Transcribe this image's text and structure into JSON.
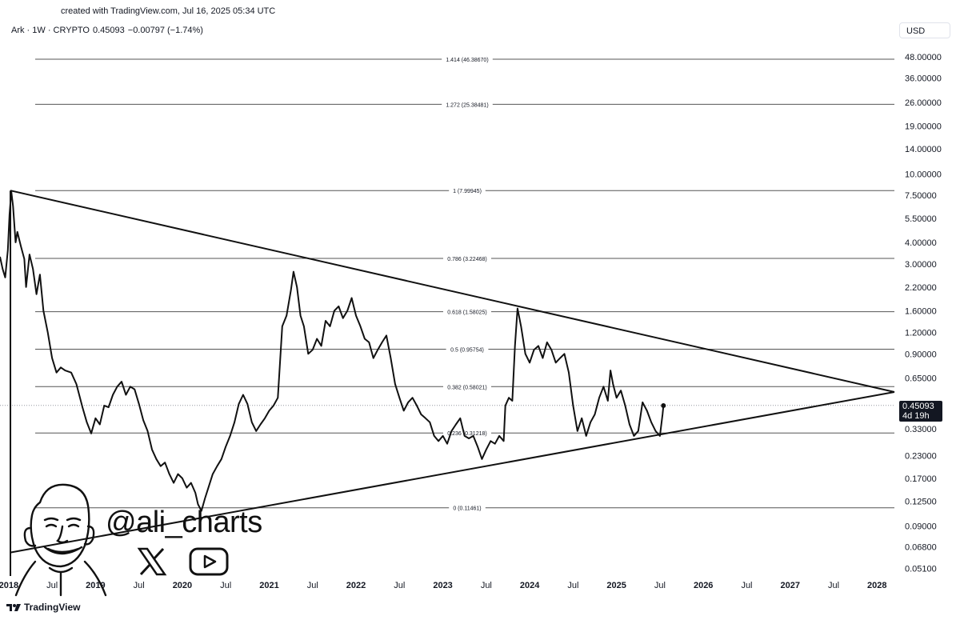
{
  "header": {
    "credit": "created with TradingView.com, Jul 16, 2025 05:34 UTC",
    "symbol": "Ark · 1W · CRYPTO",
    "price": "0.45093",
    "change": "−0.00797 (−1.74%)",
    "currency": "USD"
  },
  "footer": {
    "brand": "TradingView"
  },
  "watermark": {
    "handle": "@ali_charts"
  },
  "price_tag": {
    "price": "0.45093",
    "countdown": "4d 19h"
  },
  "chart_data": {
    "type": "line",
    "scale": "log",
    "ylim": [
      0.046,
      60
    ],
    "xlim": [
      2017.9,
      2028.2
    ],
    "y_ticks": [
      {
        "value": 48,
        "label": "48.00000"
      },
      {
        "value": 36,
        "label": "36.00000"
      },
      {
        "value": 26,
        "label": "26.00000"
      },
      {
        "value": 19,
        "label": "19.00000"
      },
      {
        "value": 14,
        "label": "14.00000"
      },
      {
        "value": 10,
        "label": "10.00000"
      },
      {
        "value": 7.5,
        "label": "7.50000"
      },
      {
        "value": 5.5,
        "label": "5.50000"
      },
      {
        "value": 4,
        "label": "4.00000"
      },
      {
        "value": 3,
        "label": "3.00000"
      },
      {
        "value": 2.2,
        "label": "2.20000"
      },
      {
        "value": 1.6,
        "label": "1.60000"
      },
      {
        "value": 1.2,
        "label": "1.20000"
      },
      {
        "value": 0.9,
        "label": "0.90000"
      },
      {
        "value": 0.65,
        "label": "0.65000"
      },
      {
        "value": 0.33,
        "label": "0.33000"
      },
      {
        "value": 0.23,
        "label": "0.23000"
      },
      {
        "value": 0.17,
        "label": "0.17000"
      },
      {
        "value": 0.125,
        "label": "0.12500"
      },
      {
        "value": 0.09,
        "label": "0.09000"
      },
      {
        "value": 0.068,
        "label": "0.06800"
      },
      {
        "value": 0.051,
        "label": "0.05100"
      }
    ],
    "x_ticks": [
      {
        "value": 2018.0,
        "label": "2018",
        "bold": true
      },
      {
        "value": 2018.5,
        "label": "Jul",
        "bold": false
      },
      {
        "value": 2019.0,
        "label": "2019",
        "bold": true
      },
      {
        "value": 2019.5,
        "label": "Jul",
        "bold": false
      },
      {
        "value": 2020.0,
        "label": "2020",
        "bold": true
      },
      {
        "value": 2020.5,
        "label": "Jul",
        "bold": false
      },
      {
        "value": 2021.0,
        "label": "2021",
        "bold": true
      },
      {
        "value": 2021.5,
        "label": "Jul",
        "bold": false
      },
      {
        "value": 2022.0,
        "label": "2022",
        "bold": true
      },
      {
        "value": 2022.5,
        "label": "Jul",
        "bold": false
      },
      {
        "value": 2023.0,
        "label": "2023",
        "bold": true
      },
      {
        "value": 2023.5,
        "label": "Jul",
        "bold": false
      },
      {
        "value": 2024.0,
        "label": "2024",
        "bold": true
      },
      {
        "value": 2024.5,
        "label": "Jul",
        "bold": false
      },
      {
        "value": 2025.0,
        "label": "2025",
        "bold": true
      },
      {
        "value": 2025.5,
        "label": "Jul",
        "bold": false
      },
      {
        "value": 2026.0,
        "label": "2026",
        "bold": true
      },
      {
        "value": 2026.5,
        "label": "Jul",
        "bold": false
      },
      {
        "value": 2027.0,
        "label": "2027",
        "bold": true
      },
      {
        "value": 2027.5,
        "label": "Jul",
        "bold": false
      },
      {
        "value": 2028.0,
        "label": "2028",
        "bold": true
      }
    ],
    "fib_levels": [
      {
        "level": "1.414",
        "value": 46.3867,
        "label": "1.414 (46.38670)"
      },
      {
        "level": "1.272",
        "value": 25.38481,
        "label": "1.272 (25.38481)"
      },
      {
        "level": "1",
        "value": 7.99945,
        "label": "1 (7.99945)"
      },
      {
        "level": "0.786",
        "value": 3.22468,
        "label": "0.786 (3.22468)"
      },
      {
        "level": "0.618",
        "value": 1.58025,
        "label": "0.618 (1.58025)"
      },
      {
        "level": "0.5",
        "value": 0.95754,
        "label": "0.5 (0.95754)"
      },
      {
        "level": "0.382",
        "value": 0.58021,
        "label": "0.382 (0.58021)"
      },
      {
        "level": "0.236",
        "value": 0.312,
        "label": "0.236 (0.31218)"
      },
      {
        "level": "0",
        "value": 0.11461,
        "label": "0 (0.11461)"
      }
    ],
    "triangle": {
      "upper": [
        [
          2018.02,
          8.0
        ],
        [
          2028.2,
          0.54
        ]
      ],
      "lower": [
        [
          2018.02,
          0.063
        ],
        [
          2028.2,
          0.54
        ]
      ],
      "vertical": [
        [
          2018.02,
          8.0
        ],
        [
          2018.02,
          0.046
        ]
      ]
    },
    "current_price": 0.45093,
    "series": [
      {
        "points": [
          [
            2017.9,
            3.3
          ],
          [
            2017.93,
            2.8
          ],
          [
            2017.96,
            2.5
          ],
          [
            2017.99,
            3.6
          ],
          [
            2018.01,
            5.8
          ],
          [
            2018.03,
            7.9
          ],
          [
            2018.05,
            6.5
          ],
          [
            2018.08,
            4.0
          ],
          [
            2018.1,
            4.6
          ],
          [
            2018.14,
            3.8
          ],
          [
            2018.18,
            3.2
          ],
          [
            2018.2,
            2.2
          ],
          [
            2018.24,
            3.4
          ],
          [
            2018.28,
            2.8
          ],
          [
            2018.32,
            2.0
          ],
          [
            2018.36,
            2.6
          ],
          [
            2018.4,
            1.6
          ],
          [
            2018.45,
            1.2
          ],
          [
            2018.5,
            0.85
          ],
          [
            2018.55,
            0.7
          ],
          [
            2018.6,
            0.75
          ],
          [
            2018.65,
            0.72
          ],
          [
            2018.72,
            0.7
          ],
          [
            2018.78,
            0.6
          ],
          [
            2018.85,
            0.44
          ],
          [
            2018.9,
            0.36
          ],
          [
            2018.95,
            0.31
          ],
          [
            2019.0,
            0.38
          ],
          [
            2019.05,
            0.35
          ],
          [
            2019.1,
            0.45
          ],
          [
            2019.15,
            0.44
          ],
          [
            2019.2,
            0.52
          ],
          [
            2019.25,
            0.58
          ],
          [
            2019.3,
            0.62
          ],
          [
            2019.35,
            0.52
          ],
          [
            2019.4,
            0.58
          ],
          [
            2019.45,
            0.56
          ],
          [
            2019.5,
            0.46
          ],
          [
            2019.55,
            0.37
          ],
          [
            2019.6,
            0.32
          ],
          [
            2019.65,
            0.25
          ],
          [
            2019.7,
            0.22
          ],
          [
            2019.75,
            0.2
          ],
          [
            2019.8,
            0.21
          ],
          [
            2019.85,
            0.18
          ],
          [
            2019.9,
            0.16
          ],
          [
            2019.95,
            0.18
          ],
          [
            2020.0,
            0.17
          ],
          [
            2020.05,
            0.15
          ],
          [
            2020.1,
            0.16
          ],
          [
            2020.15,
            0.14
          ],
          [
            2020.18,
            0.12
          ],
          [
            2020.22,
            0.11
          ],
          [
            2020.26,
            0.13
          ],
          [
            2020.3,
            0.15
          ],
          [
            2020.35,
            0.18
          ],
          [
            2020.4,
            0.2
          ],
          [
            2020.45,
            0.22
          ],
          [
            2020.5,
            0.26
          ],
          [
            2020.55,
            0.3
          ],
          [
            2020.6,
            0.36
          ],
          [
            2020.65,
            0.46
          ],
          [
            2020.7,
            0.52
          ],
          [
            2020.75,
            0.46
          ],
          [
            2020.8,
            0.36
          ],
          [
            2020.85,
            0.32
          ],
          [
            2020.9,
            0.35
          ],
          [
            2020.95,
            0.38
          ],
          [
            2021.0,
            0.42
          ],
          [
            2021.05,
            0.45
          ],
          [
            2021.1,
            0.5
          ],
          [
            2021.15,
            1.3
          ],
          [
            2021.2,
            1.5
          ],
          [
            2021.25,
            2.1
          ],
          [
            2021.28,
            2.7
          ],
          [
            2021.32,
            2.2
          ],
          [
            2021.36,
            1.5
          ],
          [
            2021.4,
            1.3
          ],
          [
            2021.45,
            0.9
          ],
          [
            2021.5,
            0.95
          ],
          [
            2021.55,
            1.1
          ],
          [
            2021.6,
            1.0
          ],
          [
            2021.65,
            1.4
          ],
          [
            2021.7,
            1.3
          ],
          [
            2021.75,
            1.6
          ],
          [
            2021.8,
            1.7
          ],
          [
            2021.85,
            1.45
          ],
          [
            2021.9,
            1.6
          ],
          [
            2021.95,
            1.9
          ],
          [
            2022.0,
            1.5
          ],
          [
            2022.05,
            1.3
          ],
          [
            2022.1,
            1.1
          ],
          [
            2022.15,
            1.05
          ],
          [
            2022.2,
            0.85
          ],
          [
            2022.25,
            0.95
          ],
          [
            2022.3,
            1.05
          ],
          [
            2022.35,
            1.15
          ],
          [
            2022.4,
            0.85
          ],
          [
            2022.45,
            0.6
          ],
          [
            2022.5,
            0.5
          ],
          [
            2022.55,
            0.42
          ],
          [
            2022.6,
            0.47
          ],
          [
            2022.65,
            0.5
          ],
          [
            2022.7,
            0.45
          ],
          [
            2022.75,
            0.4
          ],
          [
            2022.8,
            0.38
          ],
          [
            2022.85,
            0.36
          ],
          [
            2022.9,
            0.3
          ],
          [
            2022.95,
            0.28
          ],
          [
            2023.0,
            0.3
          ],
          [
            2023.05,
            0.27
          ],
          [
            2023.1,
            0.32
          ],
          [
            2023.15,
            0.35
          ],
          [
            2023.2,
            0.38
          ],
          [
            2023.25,
            0.3
          ],
          [
            2023.3,
            0.29
          ],
          [
            2023.35,
            0.3
          ],
          [
            2023.4,
            0.26
          ],
          [
            2023.45,
            0.22
          ],
          [
            2023.5,
            0.25
          ],
          [
            2023.55,
            0.28
          ],
          [
            2023.6,
            0.27
          ],
          [
            2023.65,
            0.3
          ],
          [
            2023.7,
            0.28
          ],
          [
            2023.72,
            0.45
          ],
          [
            2023.76,
            0.5
          ],
          [
            2023.8,
            0.48
          ],
          [
            2023.83,
            1.0
          ],
          [
            2023.86,
            1.65
          ],
          [
            2023.9,
            1.3
          ],
          [
            2023.95,
            0.9
          ],
          [
            2024.0,
            0.8
          ],
          [
            2024.05,
            0.95
          ],
          [
            2024.1,
            1.0
          ],
          [
            2024.15,
            0.85
          ],
          [
            2024.2,
            1.05
          ],
          [
            2024.25,
            0.95
          ],
          [
            2024.3,
            0.8
          ],
          [
            2024.35,
            0.85
          ],
          [
            2024.4,
            0.9
          ],
          [
            2024.45,
            0.7
          ],
          [
            2024.5,
            0.45
          ],
          [
            2024.55,
            0.32
          ],
          [
            2024.6,
            0.38
          ],
          [
            2024.65,
            0.3
          ],
          [
            2024.7,
            0.36
          ],
          [
            2024.75,
            0.4
          ],
          [
            2024.8,
            0.5
          ],
          [
            2024.85,
            0.58
          ],
          [
            2024.9,
            0.48
          ],
          [
            2024.93,
            0.72
          ],
          [
            2024.96,
            0.6
          ],
          [
            2025.0,
            0.5
          ],
          [
            2025.05,
            0.55
          ],
          [
            2025.1,
            0.45
          ],
          [
            2025.15,
            0.35
          ],
          [
            2025.2,
            0.3
          ],
          [
            2025.25,
            0.32
          ],
          [
            2025.3,
            0.47
          ],
          [
            2025.35,
            0.42
          ],
          [
            2025.4,
            0.36
          ],
          [
            2025.45,
            0.32
          ],
          [
            2025.5,
            0.3
          ],
          [
            2025.53,
            0.4
          ],
          [
            2025.54,
            0.45
          ]
        ]
      }
    ]
  }
}
